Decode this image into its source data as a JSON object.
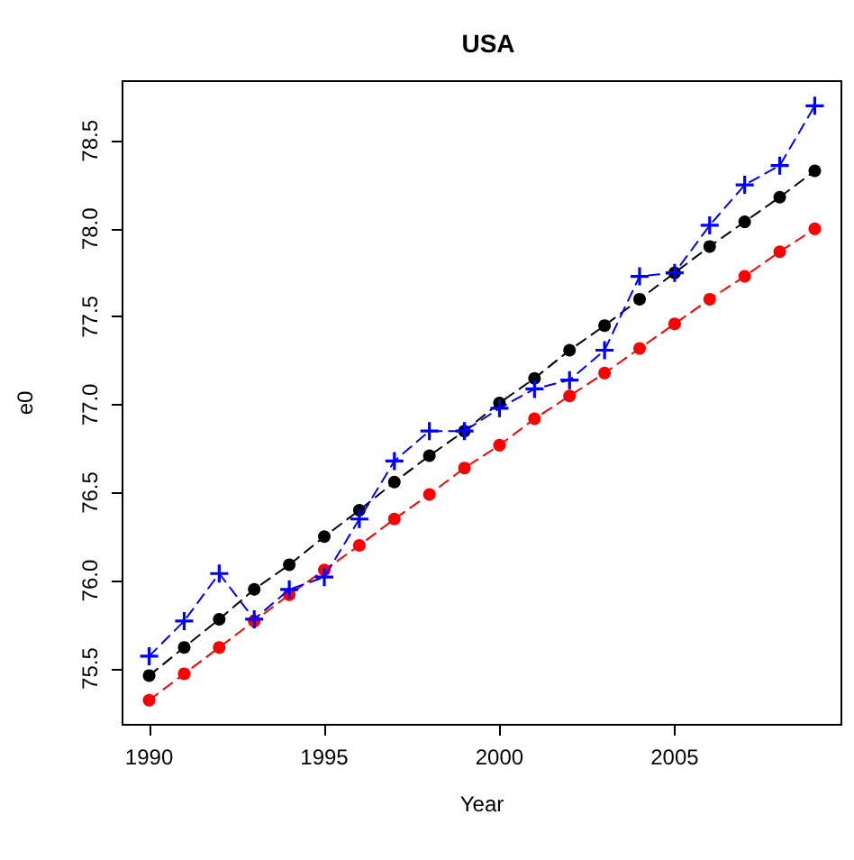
{
  "chart_data": {
    "type": "line",
    "title": "USA",
    "xlabel": "Year",
    "ylabel": "e0",
    "x": [
      1990,
      1991,
      1992,
      1993,
      1994,
      1995,
      1996,
      1997,
      1998,
      1999,
      2000,
      2001,
      2002,
      2003,
      2004,
      2005,
      2006,
      2007,
      2008,
      2009
    ],
    "series": [
      {
        "color": "#0000ff",
        "marker": "cross",
        "line_style": "dashed",
        "values": [
          75.57,
          75.77,
          76.04,
          75.78,
          75.95,
          76.02,
          76.35,
          76.68,
          76.85,
          76.85,
          76.98,
          77.09,
          77.14,
          77.31,
          77.73,
          77.75,
          78.02,
          78.25,
          78.36,
          78.7
        ]
      },
      {
        "color": "#000000",
        "marker": "circle",
        "line_style": "dashed",
        "values": [
          75.46,
          75.62,
          75.78,
          75.95,
          76.09,
          76.25,
          76.4,
          76.56,
          76.71,
          76.85,
          77.01,
          77.15,
          77.31,
          77.45,
          77.6,
          77.75,
          77.9,
          78.04,
          78.18,
          78.33
        ]
      },
      {
        "color": "#ff0000",
        "marker": "circle",
        "line_style": "dashed",
        "values": [
          75.32,
          75.47,
          75.62,
          75.77,
          75.92,
          76.06,
          76.2,
          76.35,
          76.49,
          76.64,
          76.77,
          76.92,
          77.05,
          77.18,
          77.32,
          77.46,
          77.6,
          77.73,
          77.87,
          78.0
        ]
      }
    ],
    "xlim": [
      1989.24,
      2009.76
    ],
    "xticks": [
      1990,
      1995,
      2000,
      2005
    ],
    "ylim": [
      75.18,
      78.84
    ],
    "yticks": [
      75.5,
      {
        "value": 76,
        "label": "76.0"
      },
      76.5,
      {
        "value": 77,
        "label": "77.0"
      },
      77.5,
      {
        "value": 78,
        "label": "78.0"
      },
      78.5
    ],
    "grid": false
  }
}
